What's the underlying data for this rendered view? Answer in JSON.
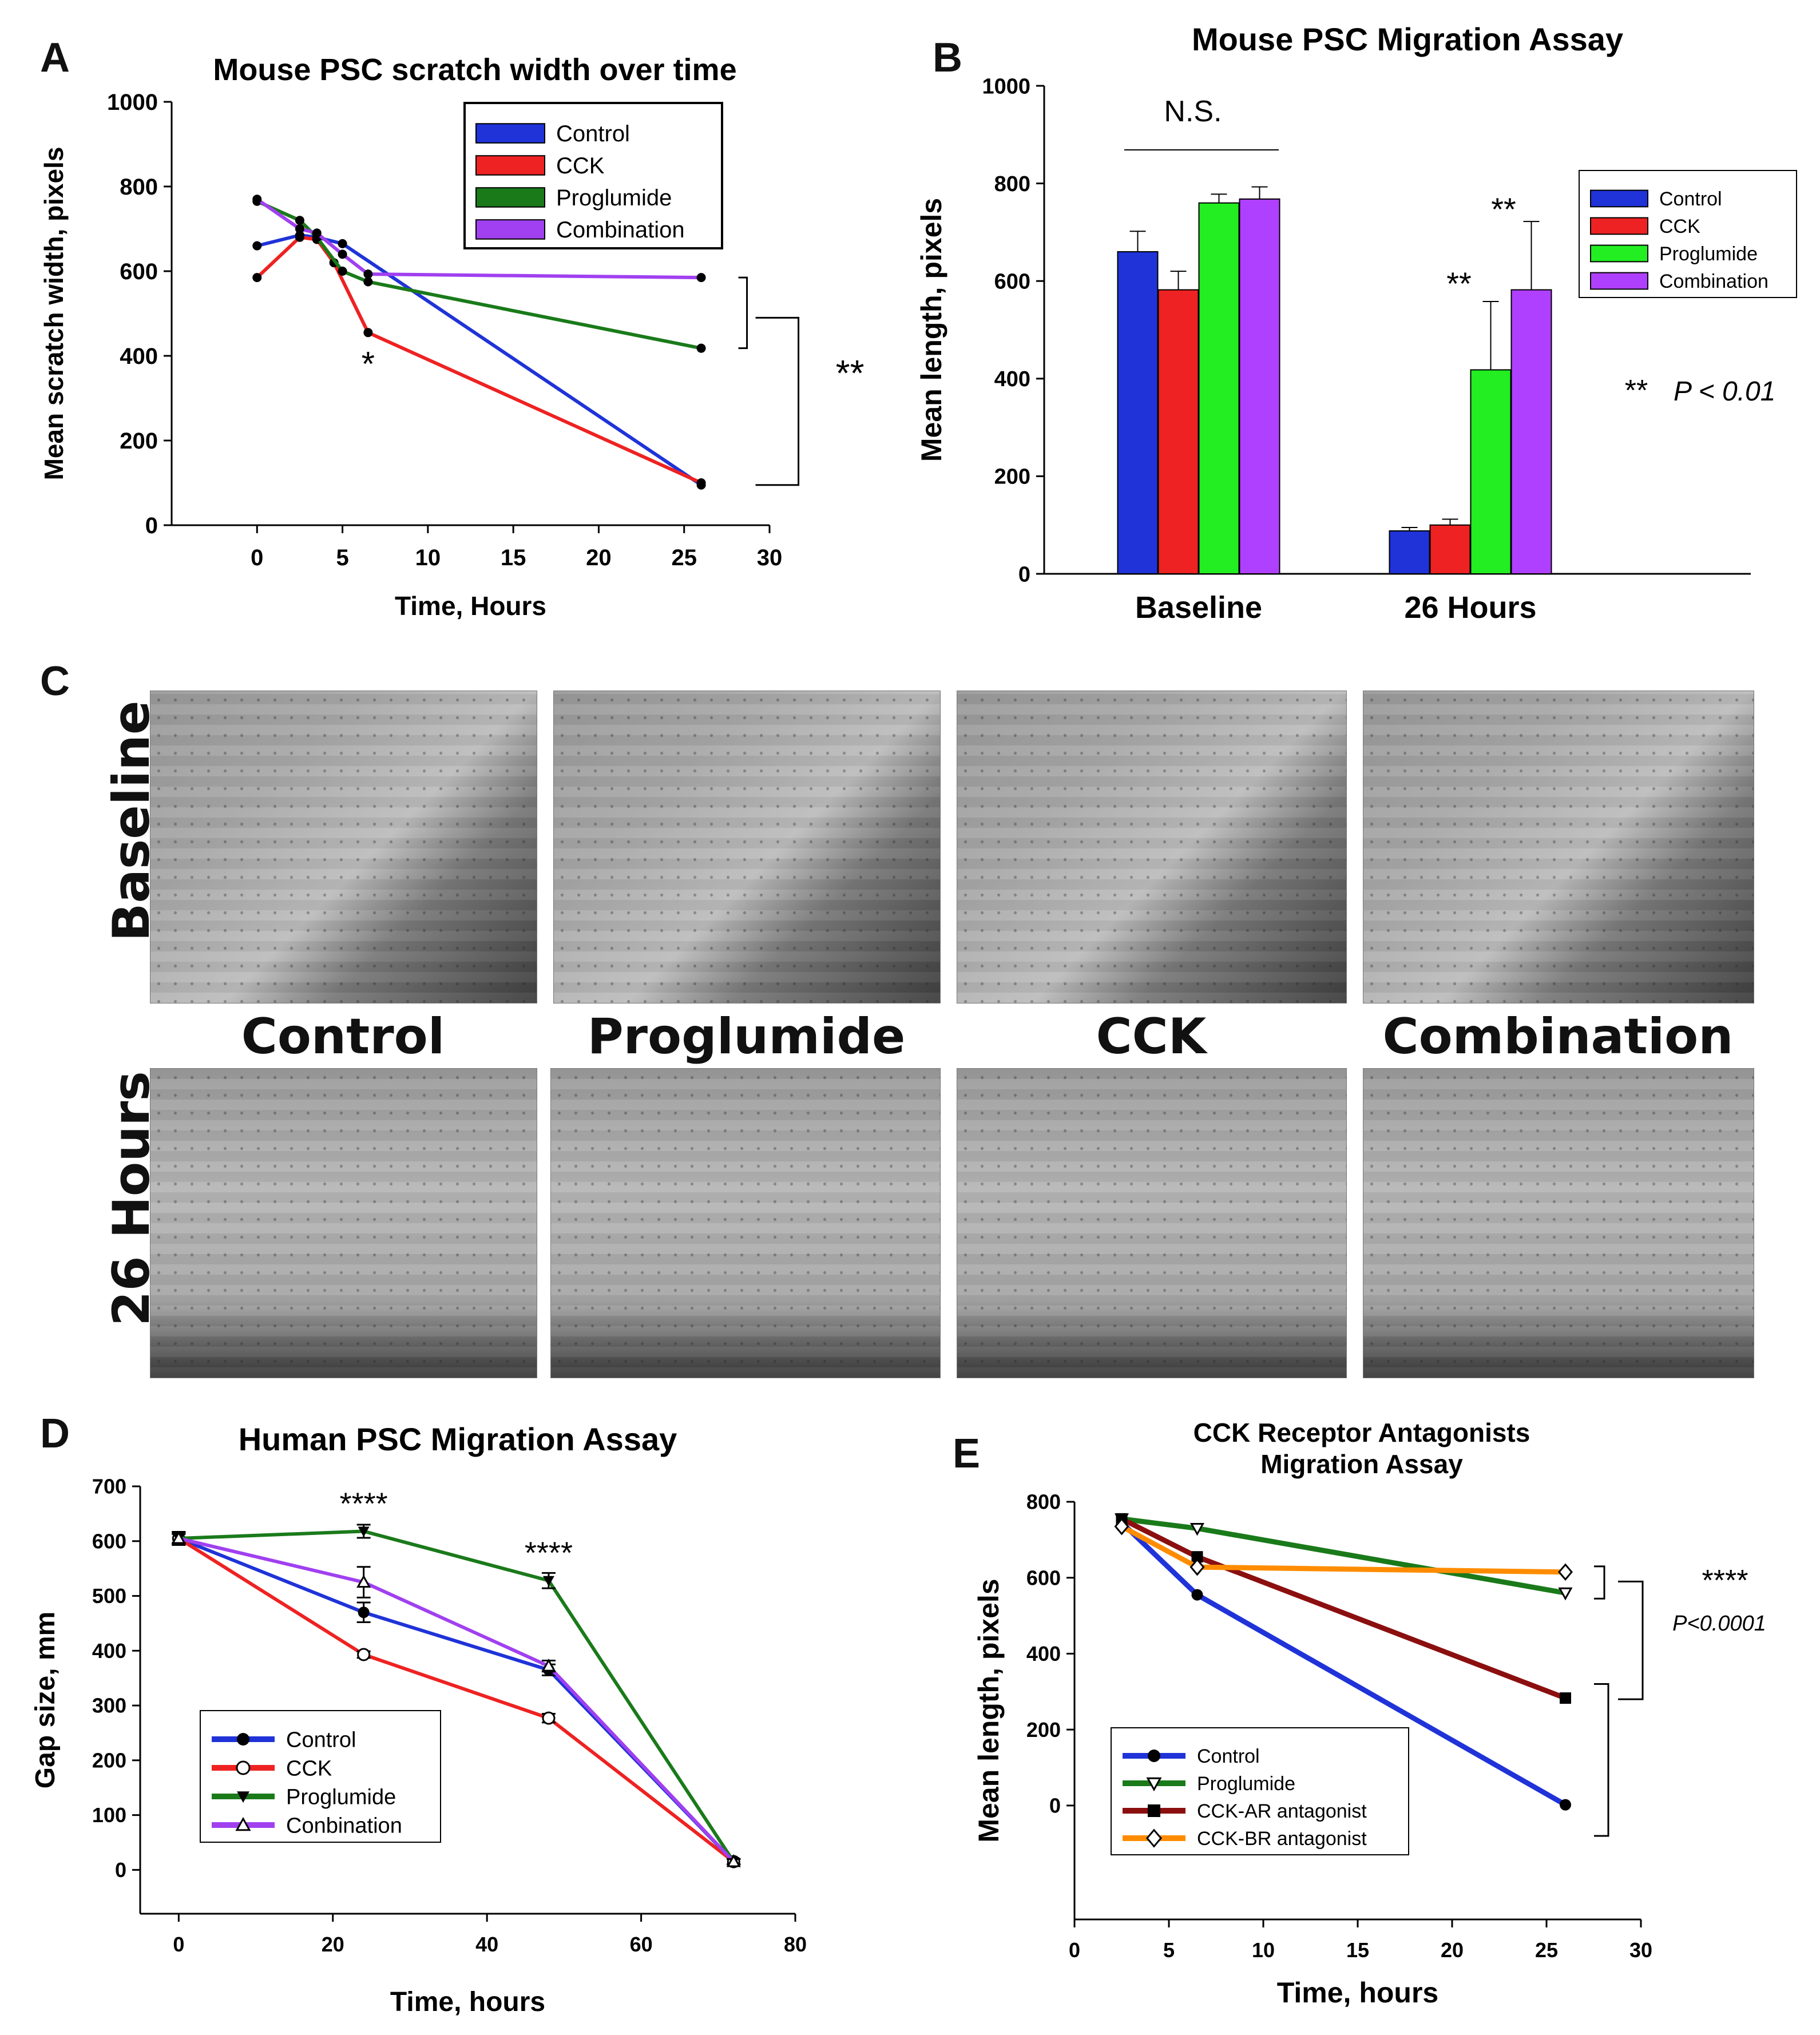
{
  "panel_letters": {
    "A": "A",
    "B": "B",
    "C": "C",
    "D": "D",
    "E": "E"
  },
  "colors": {
    "blue": "#1f33d8",
    "red": "#ee2222",
    "green": "#1a7a1a",
    "purple": "#a040f0",
    "lime": "#22ee22",
    "violet": "#b040ff",
    "darkred": "#8b0f0f",
    "orange": "#ff8c00",
    "black": "#000000"
  },
  "micrographs": {
    "row_labels": [
      "Baseline",
      "26 Hours"
    ],
    "col_labels": [
      "Control",
      "Proglumide",
      "CCK",
      "Combination"
    ]
  },
  "chart_data": [
    {
      "id": "A",
      "type": "line",
      "title": "Mouse PSC scratch width over time",
      "xlabel": "Time, Hours",
      "ylabel": "Mean scratch width, pixels",
      "xlim": [
        -5,
        30
      ],
      "ylim": [
        0,
        1000
      ],
      "xticks": [
        "0",
        "5",
        "10",
        "15",
        "20",
        "25",
        "30"
      ],
      "yticks": [
        "0",
        "200",
        "400",
        "600",
        "800",
        "1000"
      ],
      "series": [
        {
          "name": "Control",
          "color": "#1f33d8",
          "x": [
            0,
            2.5,
            3.5,
            5,
            26
          ],
          "y": [
            660,
            685,
            680,
            665,
            95
          ]
        },
        {
          "name": "CCK",
          "color": "#ee2222",
          "x": [
            0,
            2.5,
            3.5,
            4.5,
            6.5,
            26
          ],
          "y": [
            585,
            680,
            675,
            620,
            455,
            100
          ]
        },
        {
          "name": "Proglumide",
          "color": "#1a7a1a",
          "x": [
            0,
            2.5,
            3.5,
            5,
            6.5,
            26
          ],
          "y": [
            765,
            720,
            680,
            600,
            575,
            418
          ]
        },
        {
          "name": "Combination",
          "color": "#a040f0",
          "x": [
            0,
            2.5,
            3.5,
            5,
            6.5,
            26
          ],
          "y": [
            770,
            700,
            690,
            640,
            593,
            585
          ]
        }
      ],
      "annotations": {
        "star_cck": "*",
        "sig": "**"
      }
    },
    {
      "id": "B",
      "type": "bar",
      "title": "Mouse PSC Migration Assay",
      "xlabel": "",
      "ylabel": "Mean length, pixels",
      "ylim": [
        0,
        1000
      ],
      "yticks": [
        "0",
        "200",
        "400",
        "600",
        "800",
        "1000"
      ],
      "categories": [
        "Baseline",
        "26 Hours"
      ],
      "series": [
        {
          "name": "Control",
          "color": "#1f33d8",
          "values": [
            660,
            88
          ],
          "errors": [
            42,
            7
          ]
        },
        {
          "name": "CCK",
          "color": "#ee2222",
          "values": [
            582,
            100
          ],
          "errors": [
            38,
            12
          ]
        },
        {
          "name": "Proglumide",
          "color": "#22ee22",
          "values": [
            760,
            418
          ],
          "errors": [
            18,
            140
          ]
        },
        {
          "name": "Combination",
          "color": "#b040ff",
          "values": [
            768,
            582
          ],
          "errors": [
            25,
            140
          ]
        }
      ],
      "annotations": {
        "ns": "N.S.",
        "star_prog": "**",
        "star_comb": "**",
        "pvalue_stars": "**",
        "pvalue_text": "P < 0.01"
      }
    },
    {
      "id": "D",
      "type": "line",
      "title": "Human PSC Migration Assay",
      "xlabel": "Time, hours",
      "ylabel": "Gap size, mm",
      "xlim": [
        -5,
        80
      ],
      "ylim": [
        -80,
        700
      ],
      "xticks": [
        "0",
        "20",
        "40",
        "60",
        "80"
      ],
      "yticks": [
        "0",
        "100",
        "200",
        "300",
        "400",
        "500",
        "600",
        "700"
      ],
      "series": [
        {
          "name": "Control",
          "color": "#1f33d8",
          "marker": "dot",
          "x": [
            0,
            24,
            48,
            72
          ],
          "y": [
            605,
            470,
            365,
            15
          ],
          "errors": [
            12,
            18,
            10,
            5
          ]
        },
        {
          "name": "CCK",
          "color": "#ee2222",
          "marker": "open-circle",
          "x": [
            0,
            24,
            48,
            72
          ],
          "y": [
            605,
            393,
            277,
            15
          ],
          "errors": [
            8,
            6,
            8,
            5
          ]
        },
        {
          "name": "Proglumide",
          "color": "#1a7a1a",
          "marker": "tri-down",
          "x": [
            0,
            24,
            48,
            72
          ],
          "y": [
            605,
            618,
            528,
            15
          ],
          "errors": [
            12,
            12,
            14,
            5
          ]
        },
        {
          "name": "Conbination",
          "color": "#a040f0",
          "marker": "tri-up-open",
          "x": [
            0,
            24,
            48,
            72
          ],
          "y": [
            605,
            525,
            372,
            15
          ],
          "errors": [
            10,
            28,
            10,
            5
          ]
        }
      ],
      "annotations": {
        "stars_24": "****",
        "stars_48": "****"
      }
    },
    {
      "id": "E",
      "type": "line",
      "title_line1": "CCK Receptor Antagonists",
      "title_line2": "Migration Assay",
      "xlabel": "Time, hours",
      "ylabel": "Mean length, pixels",
      "xlim": [
        0,
        30
      ],
      "ylim": [
        -300,
        800
      ],
      "xticks": [
        "0",
        "5",
        "10",
        "15",
        "20",
        "25",
        "30"
      ],
      "yticks": [
        "0",
        "200",
        "400",
        "600",
        "800"
      ],
      "series": [
        {
          "name": "Control",
          "color": "#1f33d8",
          "marker": "dot",
          "x": [
            2.5,
            6.5,
            26
          ],
          "y": [
            745,
            555,
            2
          ]
        },
        {
          "name": "Proglumide",
          "color": "#1a7a1a",
          "marker": "tri-down-open",
          "x": [
            2.5,
            6.5,
            26
          ],
          "y": [
            755,
            730,
            560
          ]
        },
        {
          "name": "CCK-AR antagonist",
          "color": "#8b0f0f",
          "marker": "square",
          "x": [
            2.5,
            6.5,
            26
          ],
          "y": [
            755,
            655,
            283
          ]
        },
        {
          "name": "CCK-BR antagonist",
          "color": "#ff8c00",
          "marker": "diamond-open",
          "x": [
            2.5,
            6.5,
            26
          ],
          "y": [
            735,
            628,
            615
          ]
        }
      ],
      "annotations": {
        "stars": "****",
        "pvalue": "P<0.0001"
      }
    }
  ]
}
